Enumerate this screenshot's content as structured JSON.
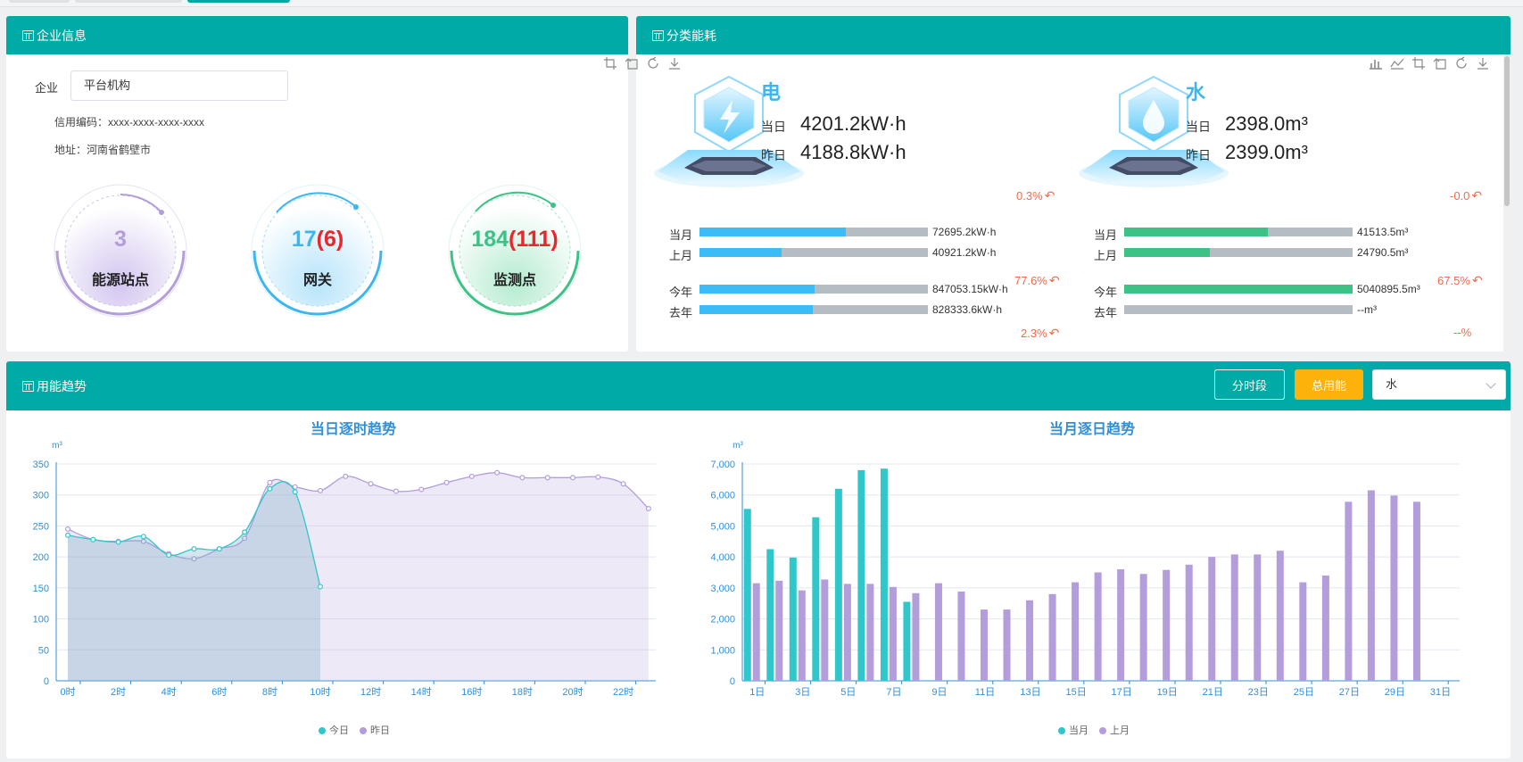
{
  "colors": {
    "teal": "#00aaa6",
    "blue": "#3cb6f0",
    "green": "#3cc286",
    "purple": "#b39ddb",
    "orange": "#f06b4e",
    "red": "#e8262c",
    "yellow": "#fcb20b"
  },
  "enterprise": {
    "title": "企业信息",
    "company_label": "企业",
    "company_value": "平台机构",
    "credit_code": "信用编码：xxxx-xxxx-xxxx-xxxx",
    "address": "地址：河南省鹤壁市",
    "stats": [
      {
        "num": "3",
        "extra": "",
        "name": "能源站点"
      },
      {
        "num": "17",
        "extra": "(6)",
        "name": "网关"
      },
      {
        "num": "184",
        "extra": "(111)",
        "name": "监测点"
      }
    ]
  },
  "category": {
    "title": "分类能耗",
    "today_label": "当日",
    "yesterday_label": "昨日",
    "elec": {
      "name": "电",
      "today": "4201.2kW·h",
      "yesterday": "4188.8kW·h",
      "day_pct": "0.3%",
      "bars": [
        {
          "label": "当月",
          "value": "72695.2kW·h",
          "ratio": 0.64
        },
        {
          "label": "上月",
          "value": "40921.2kW·h",
          "ratio": 0.36
        },
        {
          "label": "今年",
          "value": "847053.15kW·h",
          "ratio": 0.505
        },
        {
          "label": "去年",
          "value": "828333.6kW·h",
          "ratio": 0.495
        }
      ],
      "month_pct": "77.6%",
      "year_pct": "2.3%"
    },
    "water": {
      "name": "水",
      "today": "2398.0m³",
      "yesterday": "2399.0m³",
      "day_pct": "-0.0",
      "bars": [
        {
          "label": "当月",
          "value": "41513.5m³",
          "ratio": 0.63
        },
        {
          "label": "上月",
          "value": "24790.5m³",
          "ratio": 0.375
        },
        {
          "label": "今年",
          "value": "5040895.5m³",
          "ratio": 1.0
        },
        {
          "label": "去年",
          "value": "--m³",
          "ratio": 0.0
        }
      ],
      "month_pct": "67.5%",
      "year_pct": "--%"
    }
  },
  "trend": {
    "title": "用能趋势",
    "btn_period": "分时段",
    "btn_total": "总用能",
    "select_value": "水"
  },
  "chart_data": [
    {
      "type": "area",
      "title": "当日逐时趋势",
      "unit": "m³",
      "ylim": [
        0,
        350
      ],
      "yticks": [
        0,
        50,
        100,
        150,
        200,
        250,
        300,
        350
      ],
      "xtick_labels": [
        "0时",
        "2时",
        "4时",
        "6时",
        "8时",
        "10时",
        "12时",
        "14时",
        "16时",
        "18时",
        "20时",
        "22时"
      ],
      "series": [
        {
          "name": "今日",
          "values": [
            235,
            228,
            224,
            233,
            203,
            213,
            213,
            240,
            310,
            305,
            152
          ]
        },
        {
          "name": "昨日",
          "values": [
            245,
            228,
            225,
            225,
            205,
            197,
            213,
            230,
            320,
            313,
            307,
            330,
            318,
            306,
            309,
            320,
            330,
            336,
            328,
            328,
            328,
            329,
            318,
            278
          ]
        }
      ]
    },
    {
      "type": "bar",
      "title": "当月逐日趋势",
      "unit": "m³",
      "ylim": [
        0,
        7000
      ],
      "yticks": [
        "0",
        "1,000",
        "2,000",
        "3,000",
        "4,000",
        "5,000",
        "6,000",
        "7,000"
      ],
      "xtick_labels": [
        "1日",
        "3日",
        "5日",
        "7日",
        "9日",
        "11日",
        "13日",
        "15日",
        "17日",
        "19日",
        "21日",
        "23日",
        "25日",
        "27日",
        "29日",
        "31日"
      ],
      "series": [
        {
          "name": "当月",
          "values": [
            5550,
            4250,
            3980,
            5280,
            6200,
            6800,
            6850,
            2550
          ]
        },
        {
          "name": "上月",
          "values": [
            3150,
            3230,
            2920,
            3270,
            3130,
            3130,
            3030,
            2830,
            3150,
            2880,
            2300,
            2300,
            2600,
            2800,
            3180,
            3500,
            3600,
            3450,
            3580,
            3750,
            4000,
            4080,
            4080,
            4200,
            3180,
            3400,
            5780,
            6150,
            5980,
            5780
          ]
        }
      ]
    }
  ]
}
